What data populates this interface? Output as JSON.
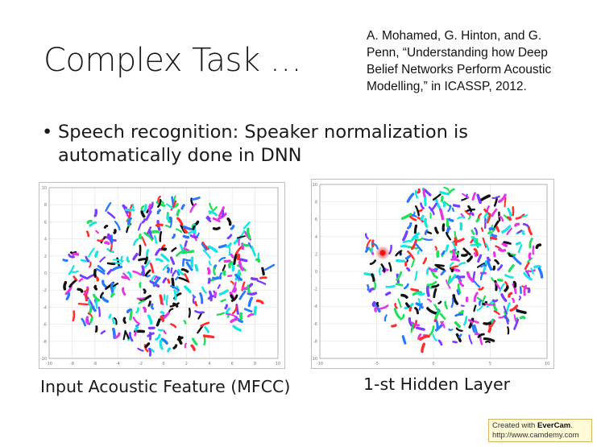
{
  "slide": {
    "title": "Complex Task …",
    "citation_lines": [
      "A. Mohamed, G. Hinton, and G.",
      "Penn, “Understanding how Deep",
      "Belief Networks Perform Acoustic",
      "Modelling,” in ICASSP, 2012."
    ],
    "bullet_symbol": "•",
    "bullet_lines": [
      "Speech recognition: Speaker normalization is",
      "automatically done in DNN"
    ],
    "left_caption": "Input Acoustic Feature (MFCC)",
    "right_caption": "1-st Hidden Layer",
    "watermark": {
      "prefix": "Created with ",
      "brand": "EverCam",
      "suffix": ".",
      "url": "http://www.camdemy.com"
    }
  },
  "chart_data": [
    {
      "type": "scatter",
      "caption": "Input Acoustic Feature (MFCC)",
      "series_colors": [
        "#ff2e2e",
        "#1fe05b",
        "#2979ff",
        "#e535e5",
        "#17e5e5",
        "#7a3cff",
        "#111111"
      ],
      "grid": true,
      "x_tick_labels": [
        "-10",
        "-8",
        "-6",
        "-4",
        "-2",
        "0",
        "2",
        "4",
        "6",
        "8",
        "10"
      ],
      "y_tick_labels": [
        "10",
        "8",
        "6",
        "4",
        "2",
        "0",
        "-2",
        "-4",
        "-6",
        "-8",
        "-10"
      ]
    },
    {
      "type": "scatter",
      "caption": "1-st Hidden Layer",
      "series_colors": [
        "#ff2e2e",
        "#1fe05b",
        "#2979ff",
        "#e535e5",
        "#17e5e5",
        "#7a3cff",
        "#111111"
      ],
      "grid": true,
      "x_tick_labels": [
        "-10",
        "-5",
        "0",
        "5",
        "10"
      ],
      "y_tick_labels": [
        "10",
        "8",
        "6",
        "4",
        "2",
        "0",
        "-2",
        "-4",
        "-6",
        "-8",
        "-10"
      ]
    }
  ]
}
